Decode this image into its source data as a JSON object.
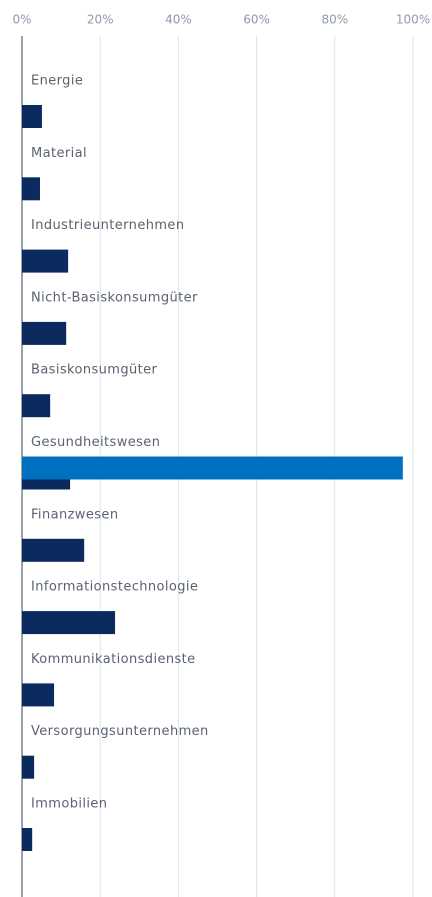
{
  "chart_data": {
    "type": "hbar",
    "categories": [
      "Energie",
      "Material",
      "Industrieunternehmen",
      "Nicht-Basiskonsumgüter",
      "Basiskonsumgüter",
      "Gesundheitswesen",
      "Finanzwesen",
      "Informationstechnologie",
      "Kommunikationsdienste",
      "Versorgungsunternehmen",
      "Immobilien"
    ],
    "series": [
      {
        "color": "#0b2a5e",
        "values": [
          5.1,
          4.6,
          11.8,
          11.3,
          7.2,
          12.3,
          15.9,
          23.8,
          8.2,
          3.1,
          2.6
        ]
      },
      {
        "color": "#0070c0",
        "values": [
          null,
          null,
          null,
          null,
          null,
          97.4,
          null,
          null,
          null,
          null,
          null
        ]
      }
    ],
    "xlim": [
      0,
      100
    ],
    "xticks": [
      {
        "value": 0,
        "label": "0%"
      },
      {
        "value": 20,
        "label": "20%"
      },
      {
        "value": 40,
        "label": "40%"
      },
      {
        "value": 60,
        "label": "60%"
      },
      {
        "value": 80,
        "label": "80%"
      },
      {
        "value": 100,
        "label": "100%"
      }
    ],
    "grid": true
  }
}
